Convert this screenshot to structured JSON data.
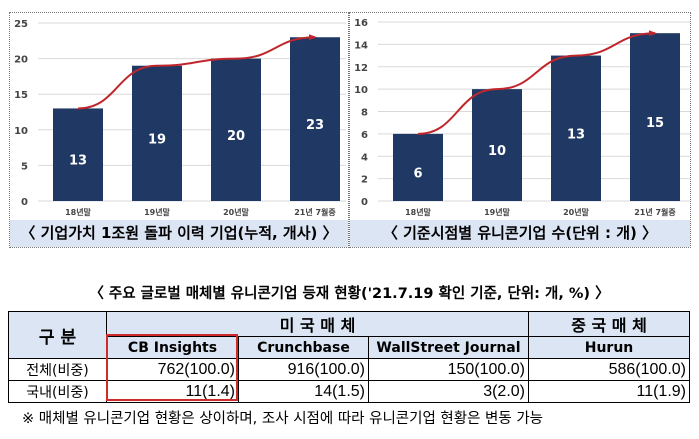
{
  "chart_data": [
    {
      "type": "bar",
      "title": "〈 기업가치 1조원 돌파 이력 기업(누적, 개사) 〉",
      "categories": [
        "18년말",
        "19년말",
        "20년말",
        "21년 7월중"
      ],
      "values": [
        13,
        19,
        20,
        23
      ],
      "ylim": [
        0,
        25
      ],
      "yticks": [
        0,
        5,
        10,
        15,
        20,
        25
      ],
      "trend_line": true,
      "bar_color": "#1f3864",
      "line_color": "#c0272d",
      "grid": true
    },
    {
      "type": "bar",
      "title": "〈 기준시점별 유니콘기업 수(단위 : 개) 〉",
      "categories": [
        "18년말",
        "19년말",
        "20년말",
        "21년 7월중"
      ],
      "values": [
        6,
        10,
        13,
        15
      ],
      "ylim": [
        0,
        16
      ],
      "yticks": [
        0,
        2,
        4,
        6,
        8,
        10,
        12,
        14,
        16
      ],
      "trend_line": true,
      "bar_color": "#1f3864",
      "line_color": "#c0272d",
      "grid": true
    }
  ],
  "table": {
    "title": "〈 주요 글로벌 매체별 유니콘기업 등재 현황('21.7.19 확인 기준, 단위: 개, %) 〉",
    "corner": "구  분",
    "group_us": "미 국 매 체",
    "group_cn": "중 국 매 체",
    "columns": [
      "CB Insights",
      "Crunchbase",
      "WallStreet Journal",
      "Hurun"
    ],
    "rows": [
      {
        "label": "전체(비중)",
        "values": [
          "762(100.0)",
          "916(100.0)",
          "150(100.0)",
          "586(100.0)"
        ]
      },
      {
        "label": "국내(비중)",
        "values": [
          "11(1.4)",
          "14(1.5)",
          "3(2.0)",
          "11(1.9)"
        ]
      }
    ]
  },
  "footnote": "※ 매체별 유니콘기업 현황은 상이하며, 조사 시점에 따라 유니콘기업 현황은 변동 가능"
}
